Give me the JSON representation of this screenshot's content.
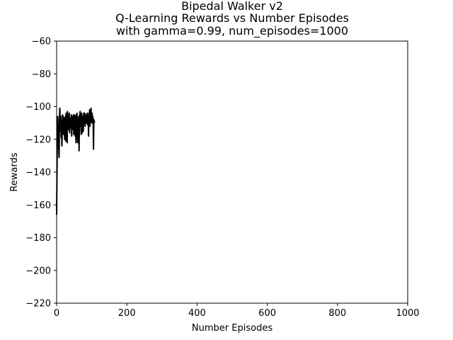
{
  "chart_data": {
    "type": "line",
    "title_lines": [
      "Bipedal Walker v2",
      "Q-Learning Rewards vs Number Episodes",
      "with gamma=0.99, num_episodes=1000"
    ],
    "xlabel": "Number Episodes",
    "ylabel": "Rewards",
    "xlim": [
      0,
      1000
    ],
    "ylim": [
      -220,
      -60
    ],
    "xticks": [
      0,
      200,
      400,
      600,
      800,
      1000
    ],
    "yticks": [
      -220,
      -200,
      -180,
      -160,
      -140,
      -120,
      -100,
      -80,
      -60
    ],
    "xtick_labels": [
      "0",
      "200",
      "400",
      "600",
      "800",
      "1000"
    ],
    "ytick_labels": [
      "−220",
      "−200",
      "−180",
      "−160",
      "−140",
      "−120",
      "−100",
      "−80",
      "−60"
    ],
    "grid": false,
    "legend": "none",
    "series": [
      {
        "color": "#000000",
        "x": [
          0,
          1,
          2,
          3,
          4,
          5,
          6,
          7,
          8,
          9,
          10,
          11,
          12,
          13,
          14,
          15,
          16,
          17,
          18,
          19,
          20,
          21,
          22,
          23,
          24,
          25,
          26,
          27,
          28,
          29,
          30,
          31,
          32,
          33,
          34,
          35,
          36,
          37,
          38,
          39,
          40,
          41,
          42,
          43,
          44,
          45,
          46,
          47,
          48,
          49,
          50,
          51,
          52,
          53,
          54,
          55,
          56,
          57,
          58,
          59,
          60,
          61,
          62,
          63,
          64,
          65,
          66,
          67,
          68,
          69,
          70,
          71,
          72,
          73,
          74,
          75,
          76,
          77,
          78,
          79,
          80,
          81,
          82,
          83,
          84,
          85,
          86,
          87,
          88,
          89,
          90,
          91,
          92,
          93,
          94,
          95,
          96,
          97,
          98,
          99,
          100,
          101,
          102,
          103,
          104,
          105,
          106,
          107,
          108
        ],
        "y": [
          -166,
          -140,
          -120,
          -106,
          -112,
          -118,
          -125,
          -131,
          -108,
          -101,
          -108,
          -115,
          -106,
          -119,
          -109,
          -124,
          -114,
          -105,
          -110,
          -106,
          -117,
          -107,
          -112,
          -120,
          -108,
          -106,
          -121,
          -104,
          -110,
          -118,
          -122,
          -103,
          -108,
          -114,
          -106,
          -110,
          -104,
          -116,
          -108,
          -113,
          -107,
          -112,
          -105,
          -118,
          -108,
          -109,
          -106,
          -114,
          -105,
          -117,
          -108,
          -105,
          -112,
          -118,
          -106,
          -122,
          -105,
          -110,
          -104,
          -118,
          -122,
          -108,
          -113,
          -106,
          -127,
          -110,
          -105,
          -103,
          -112,
          -109,
          -117,
          -104,
          -108,
          -116,
          -106,
          -110,
          -115,
          -104,
          -108,
          -110,
          -104,
          -112,
          -106,
          -105,
          -110,
          -108,
          -107,
          -104,
          -111,
          -109,
          -106,
          -118,
          -104,
          -108,
          -102,
          -112,
          -106,
          -104,
          -101,
          -108,
          -110,
          -104,
          -109,
          -106,
          -108,
          -126,
          -108,
          -109,
          -110
        ]
      }
    ]
  }
}
